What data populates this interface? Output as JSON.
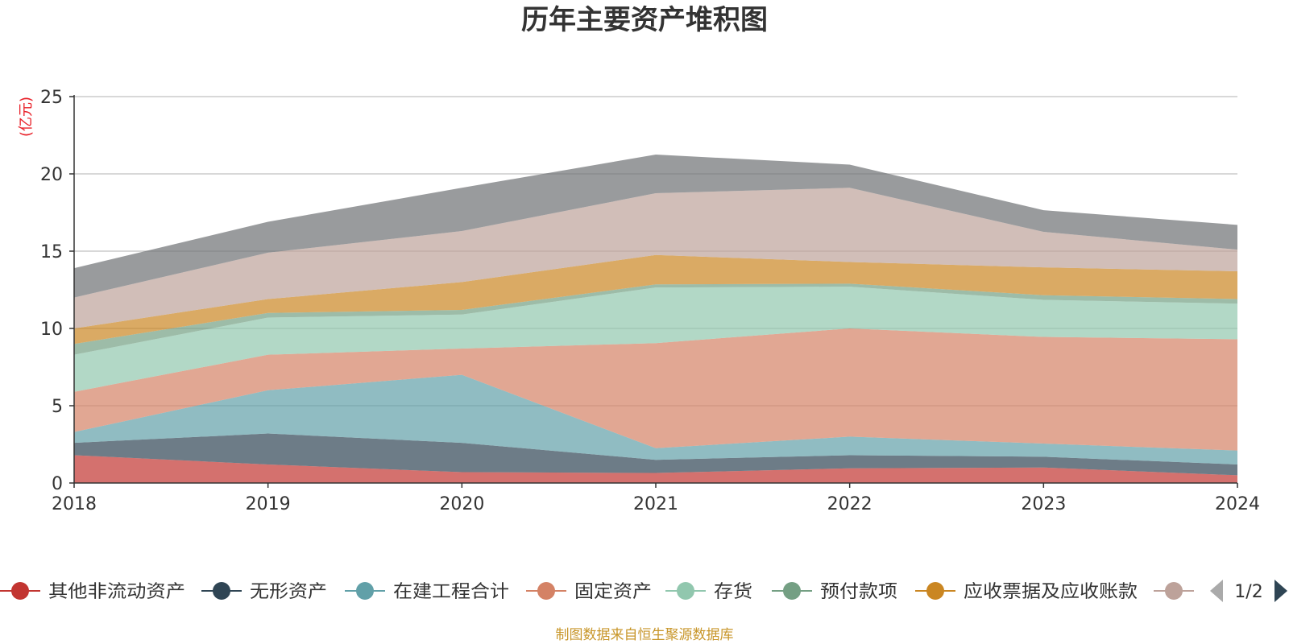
{
  "chart_data": {
    "type": "area",
    "stacked": true,
    "title": "历年主要资产堆积图",
    "ylabel": "(亿元)",
    "x": [
      "2018",
      "2019",
      "2020",
      "2021",
      "2022",
      "2023",
      "2024"
    ],
    "ylim": [
      0,
      25
    ],
    "yticks": [
      0,
      5,
      10,
      15,
      20,
      25
    ],
    "grid": true,
    "legend_position": "bottom",
    "legend_page": "1/2",
    "series": [
      {
        "name": "其他非流动资产",
        "color": "#c23531",
        "values": [
          1.8,
          1.2,
          0.7,
          0.65,
          0.95,
          1.0,
          0.5
        ]
      },
      {
        "name": "无形资产",
        "color": "#2f4554",
        "values": [
          0.8,
          2.0,
          1.9,
          0.85,
          0.85,
          0.7,
          0.7
        ]
      },
      {
        "name": "在建工程合计",
        "color": "#61a0a8",
        "values": [
          0.7,
          2.8,
          4.4,
          0.75,
          1.2,
          0.85,
          0.9
        ]
      },
      {
        "name": "固定资产",
        "color": "#d48265",
        "values": [
          2.6,
          2.3,
          1.7,
          6.8,
          7.0,
          6.9,
          7.2
        ]
      },
      {
        "name": "存货",
        "color": "#91c7ae",
        "values": [
          2.4,
          2.4,
          2.2,
          3.6,
          2.7,
          2.4,
          2.3
        ]
      },
      {
        "name": "预付款项",
        "color": "#749f83",
        "values": [
          0.7,
          0.3,
          0.3,
          0.2,
          0.2,
          0.3,
          0.3
        ]
      },
      {
        "name": "应收票据及应收账款",
        "color": "#ca8622",
        "values": [
          1.0,
          0.9,
          1.8,
          1.9,
          1.4,
          1.8,
          1.8
        ]
      },
      {
        "name": "",
        "color": "#bda29a",
        "values": [
          2.0,
          3.0,
          3.3,
          4.0,
          4.8,
          2.3,
          1.4
        ]
      },
      {
        "name": "",
        "color": "#6e7074",
        "values": [
          1.9,
          2.0,
          2.8,
          2.5,
          1.5,
          1.4,
          1.6
        ]
      }
    ]
  },
  "footer": {
    "source_text": "制图数据来自恒生聚源数据库"
  }
}
